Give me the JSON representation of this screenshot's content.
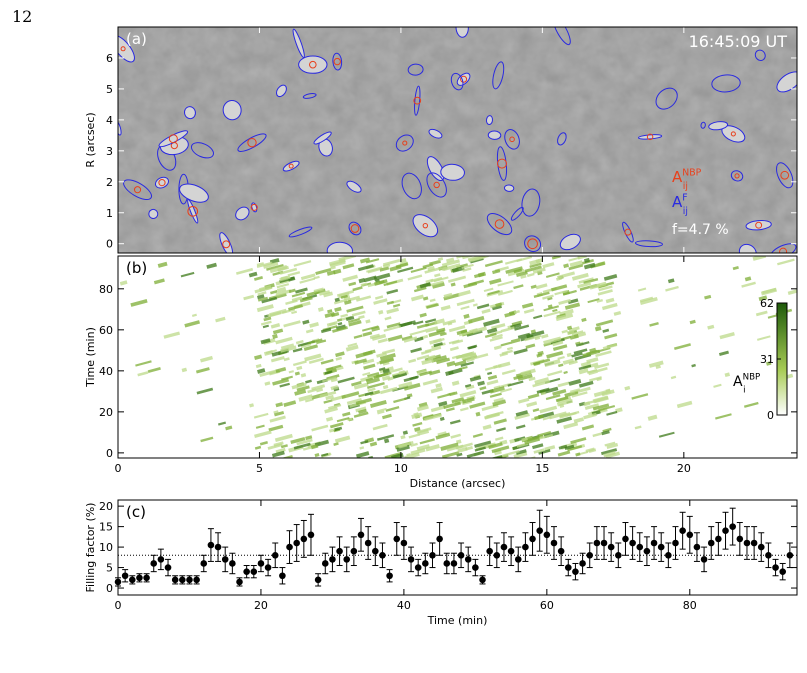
{
  "page_number": "12",
  "chart_data": [
    {
      "type": "image",
      "panel_label": "(a)",
      "timestamp": "16:45:09 UT",
      "ylabel": "R (arcsec)",
      "xlim": [
        0,
        24
      ],
      "xticks": [
        0,
        5,
        10,
        15,
        20
      ],
      "ylim": [
        -0.3,
        7.0
      ],
      "yticks": [
        0,
        1,
        2,
        3,
        4,
        5,
        6
      ],
      "legend": [
        {
          "base": "A",
          "sub": "ij",
          "sup": "NBP",
          "color": "#e8401c"
        },
        {
          "base": "A",
          "sub": "ij",
          "sup": "F",
          "color": "#2a2ae0"
        }
      ],
      "annotation": "f=4.7 %"
    },
    {
      "type": "image",
      "panel_label": "(b)",
      "xlabel": "Distance (arcsec)",
      "ylabel": "Time (min)",
      "xlim": [
        0,
        24
      ],
      "xticks": [
        0,
        5,
        10,
        15,
        20
      ],
      "ylim": [
        -2.5,
        96
      ],
      "yticks": [
        0,
        20,
        40,
        60,
        80
      ],
      "colorbar": {
        "lim": [
          0,
          62
        ],
        "ticks": [
          0,
          31,
          62
        ],
        "color": "#1e5a0a",
        "label": {
          "base": "A",
          "sub": "i",
          "sup": "NBP"
        }
      }
    },
    {
      "type": "errorbar",
      "panel_label": "(c)",
      "xlabel": "Time (min)",
      "ylabel": "Filling factor (%)",
      "xlim": [
        0,
        95
      ],
      "xticks": [
        0,
        20,
        40,
        60,
        80
      ],
      "ylim": [
        -1.7,
        21.5
      ],
      "yticks": [
        0,
        5,
        10,
        15,
        20
      ],
      "hline": 8,
      "color": "#000",
      "x": [
        0,
        1,
        2,
        3,
        4,
        5,
        6,
        7,
        8,
        9,
        10,
        11,
        12,
        13,
        14,
        15,
        16,
        17,
        18,
        19,
        20,
        21,
        22,
        23,
        24,
        25,
        26,
        27,
        28,
        29,
        30,
        31,
        32,
        33,
        34,
        35,
        36,
        37,
        38,
        39,
        40,
        41,
        42,
        43,
        44,
        45,
        46,
        47,
        48,
        49,
        50,
        51,
        52,
        53,
        54,
        55,
        56,
        57,
        58,
        59,
        60,
        61,
        62,
        63,
        64,
        65,
        66,
        67,
        68,
        69,
        70,
        71,
        72,
        73,
        74,
        75,
        76,
        77,
        78,
        79,
        80,
        81,
        82,
        83,
        84,
        85,
        86,
        87,
        88,
        89,
        90,
        91,
        92,
        93,
        94
      ],
      "values": [
        1.5,
        3,
        2,
        2.5,
        2.5,
        6,
        7,
        5,
        2,
        2,
        2,
        2,
        6,
        10.5,
        10,
        7,
        6,
        1.5,
        4,
        4,
        6,
        5,
        8,
        3,
        10,
        11,
        12,
        13,
        2,
        6,
        7,
        9,
        7,
        9,
        13,
        11,
        9,
        8,
        3,
        12,
        11,
        7,
        5,
        6,
        8,
        12,
        6,
        6,
        8,
        7,
        5,
        2,
        9,
        8,
        10,
        9,
        7,
        10,
        12,
        14,
        13,
        11,
        9,
        5,
        4,
        6,
        8,
        11,
        11,
        10,
        8,
        12,
        11,
        10,
        9,
        11,
        10,
        8,
        11,
        14,
        13,
        10,
        7,
        11,
        12,
        14,
        15,
        12,
        11,
        11,
        10,
        8,
        5,
        4,
        8
      ],
      "errors": [
        1,
        1.5,
        1,
        1,
        1,
        2,
        2.5,
        2,
        1,
        1,
        1,
        1,
        2,
        4,
        3.5,
        3,
        2.5,
        1,
        1.5,
        1.5,
        2,
        2,
        3,
        2,
        4,
        4.5,
        4.5,
        5,
        1.5,
        2.5,
        3,
        3.5,
        3,
        3.5,
        4,
        4,
        3.5,
        3,
        1.5,
        4,
        4,
        3,
        2,
        2.5,
        3,
        4,
        2.5,
        2.5,
        3,
        3,
        2,
        1,
        3.5,
        3,
        3.5,
        3.5,
        3,
        3.5,
        4,
        5,
        4.5,
        4,
        3.5,
        2,
        2,
        2.5,
        3,
        4,
        4,
        3.5,
        3,
        4,
        4,
        3.5,
        3.5,
        4,
        3.5,
        3,
        4,
        4.5,
        4.5,
        3.5,
        3,
        4,
        4,
        4.5,
        4.5,
        4,
        4,
        4,
        3.5,
        3,
        2,
        2,
        3
      ]
    }
  ]
}
